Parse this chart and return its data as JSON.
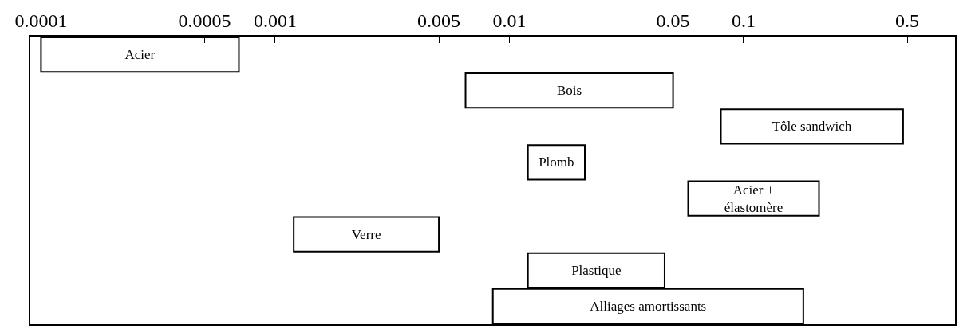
{
  "chart_data": {
    "type": "bar",
    "orientation": "horizontal",
    "log": "x",
    "categories": [
      "Acier",
      "Bois",
      "Tôle sandwich",
      "Plomb",
      "Acier +\nélastomère",
      "Verre",
      "Plastique",
      "Alliages amortissants"
    ],
    "base": [
      0.0001,
      0.0065,
      0.08,
      0.012,
      0.058,
      0.0012,
      0.012,
      0.0085
    ],
    "values": [
      0.0006,
      0.0435,
      0.4,
      0.009,
      0.152,
      0.0038,
      0.034,
      0.1715
    ],
    "color": "#ffffff",
    "xlim": [
      9e-05,
      0.8
    ],
    "xticks": [
      0.0001,
      0.0005,
      0.001,
      0.005,
      0.01,
      0.05,
      0.1,
      0.5
    ],
    "tick_labels": "x"
  }
}
